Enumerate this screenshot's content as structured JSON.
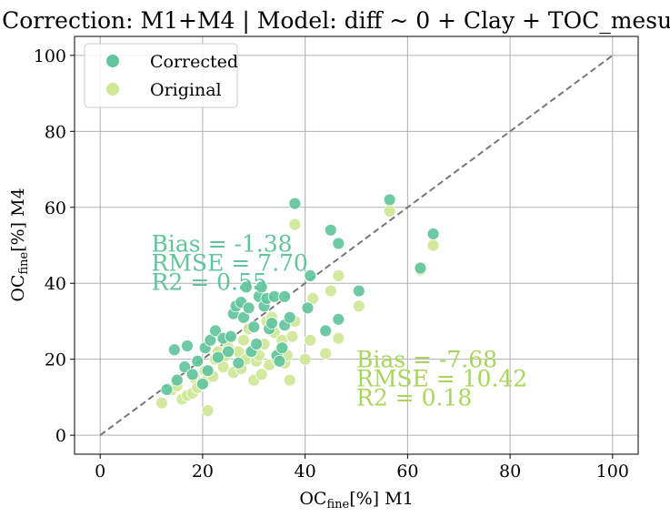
{
  "chart_data": {
    "type": "scatter",
    "title": "Correction: M1+M4 | Model: diff ~ 0 + Clay + TOC_mesured",
    "xlabel": {
      "base": "OC",
      "sub": "fine",
      "rest": "[%] M1"
    },
    "ylabel": {
      "base": "OC",
      "sub": "fine",
      "rest": "[%] M4"
    },
    "xlim": [
      -5,
      105
    ],
    "ylim": [
      -5,
      105
    ],
    "xticks": [
      0,
      20,
      40,
      60,
      80,
      100
    ],
    "yticks": [
      0,
      20,
      40,
      60,
      80,
      100
    ],
    "grid": true,
    "legend_position": "top-left",
    "reference_line": {
      "style": "dashed",
      "from": [
        0,
        0
      ],
      "to": [
        100,
        100
      ],
      "color": "#777777"
    },
    "series": [
      {
        "name": "Original",
        "color": "#cfe797",
        "points": [
          [
            12,
            8.5
          ],
          [
            14,
            12
          ],
          [
            15,
            13
          ],
          [
            16,
            9.5
          ],
          [
            17,
            10.5
          ],
          [
            18,
            11
          ],
          [
            18.5,
            15
          ],
          [
            19,
            12.5
          ],
          [
            20,
            14
          ],
          [
            20.5,
            17
          ],
          [
            21,
            6.5
          ],
          [
            21,
            15
          ],
          [
            22,
            15.5
          ],
          [
            22.5,
            20
          ],
          [
            23,
            22
          ],
          [
            24,
            18
          ],
          [
            24.5,
            21
          ],
          [
            25,
            23
          ],
          [
            26,
            16.5
          ],
          [
            27,
            22
          ],
          [
            27.5,
            17.5
          ],
          [
            28,
            25
          ],
          [
            28.5,
            20
          ],
          [
            29,
            28
          ],
          [
            30,
            14.5
          ],
          [
            30,
            22
          ],
          [
            30.5,
            19.5
          ],
          [
            31,
            21
          ],
          [
            31.5,
            16
          ],
          [
            32,
            24
          ],
          [
            32.5,
            30
          ],
          [
            33,
            18.5
          ],
          [
            33.5,
            31
          ],
          [
            34,
            27
          ],
          [
            34.5,
            20
          ],
          [
            35,
            22
          ],
          [
            35.5,
            25
          ],
          [
            36,
            19
          ],
          [
            36.5,
            21
          ],
          [
            37,
            14.5
          ],
          [
            37.5,
            26
          ],
          [
            38,
            55.5
          ],
          [
            38,
            30
          ],
          [
            40,
            20
          ],
          [
            41,
            25
          ],
          [
            41.5,
            36
          ],
          [
            44,
            21.5
          ],
          [
            45,
            38
          ],
          [
            46.5,
            25.5
          ],
          [
            46.5,
            42
          ],
          [
            50.5,
            34
          ],
          [
            56.5,
            59
          ],
          [
            62.5,
            43.5
          ],
          [
            65,
            50
          ]
        ]
      },
      {
        "name": "Corrected",
        "color": "#62c49c",
        "points": [
          [
            13,
            12
          ],
          [
            14.5,
            22.5
          ],
          [
            15,
            14.5
          ],
          [
            16.5,
            18
          ],
          [
            17,
            23.5
          ],
          [
            18,
            16
          ],
          [
            19,
            19.5
          ],
          [
            20,
            13.5
          ],
          [
            20.5,
            23
          ],
          [
            21,
            17
          ],
          [
            21.5,
            25
          ],
          [
            22.5,
            27.5
          ],
          [
            23,
            20.5
          ],
          [
            24,
            25.5
          ],
          [
            25,
            22
          ],
          [
            25.5,
            26
          ],
          [
            26,
            32
          ],
          [
            26.5,
            34
          ],
          [
            27,
            19
          ],
          [
            27.5,
            35
          ],
          [
            28,
            31
          ],
          [
            28.5,
            39
          ],
          [
            29,
            33.5
          ],
          [
            29.5,
            22
          ],
          [
            30,
            28.5
          ],
          [
            30.5,
            24
          ],
          [
            31,
            36.5
          ],
          [
            31.5,
            39
          ],
          [
            32,
            34
          ],
          [
            32.5,
            36
          ],
          [
            33,
            28
          ],
          [
            33.5,
            29.5
          ],
          [
            34,
            36.5
          ],
          [
            34.5,
            21
          ],
          [
            35,
            19.5
          ],
          [
            35.5,
            23
          ],
          [
            36,
            36.5
          ],
          [
            36,
            29
          ],
          [
            37,
            31
          ],
          [
            38,
            61
          ],
          [
            40.5,
            33.5
          ],
          [
            41,
            42
          ],
          [
            44,
            27.5
          ],
          [
            45,
            54
          ],
          [
            46.5,
            50.5
          ],
          [
            46.5,
            30.5
          ],
          [
            50.5,
            38
          ],
          [
            56.5,
            62
          ],
          [
            62.5,
            44
          ],
          [
            65,
            53
          ]
        ]
      }
    ],
    "annotations": [
      {
        "lines": [
          "Bias = -1.38",
          "RMSE = 7.70",
          "R2 = 0.55"
        ],
        "at": [
          10,
          50.5
        ],
        "color": "#62c49c"
      },
      {
        "lines": [
          "Bias = -7.68",
          "RMSE = 10.42",
          "R2 = 0.18"
        ],
        "at": [
          50,
          20
        ],
        "color": "#a9d55a"
      }
    ]
  }
}
